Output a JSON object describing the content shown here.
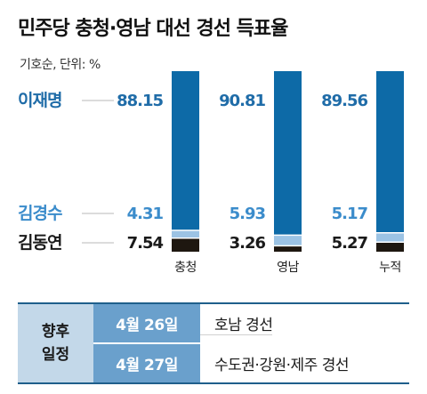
{
  "title": "민주당 충청·영남 대선 경선 득표율",
  "unit_label": "기호순, 단위: %",
  "colors": {
    "lee": "#0d6aa7",
    "kim_ks": "#9cc3e4",
    "kim_dy": "#1e1710",
    "lee_label": "#1f6ca8",
    "kim_ks_label": "#3b8ccb",
    "kim_dy_label": "#1a1a1a"
  },
  "chart_data": {
    "type": "bar",
    "stacked": true,
    "orientation": "vertical",
    "categories": [
      "충청",
      "영남",
      "누적"
    ],
    "ylim": [
      0,
      100
    ],
    "series": [
      {
        "name": "김동연",
        "values": [
          7.54,
          3.26,
          5.27
        ]
      },
      {
        "name": "김경수",
        "values": [
          4.31,
          5.93,
          5.17
        ]
      },
      {
        "name": "이재명",
        "values": [
          88.15,
          90.81,
          89.56
        ]
      }
    ],
    "value_labels": {
      "lee": [
        "88.15",
        "90.81",
        "89.56"
      ],
      "kim_ks": [
        "4.31",
        "5.93",
        "5.17"
      ],
      "kim_dy": [
        "7.54",
        "3.26",
        "5.27"
      ]
    }
  },
  "schedule": {
    "header_line1": "향후",
    "header_line2": "일정",
    "rows": [
      {
        "date": "4월 26일",
        "event": "호남 경선"
      },
      {
        "date": "4월 27일",
        "event": "수도권·강원·제주 경선"
      }
    ]
  }
}
